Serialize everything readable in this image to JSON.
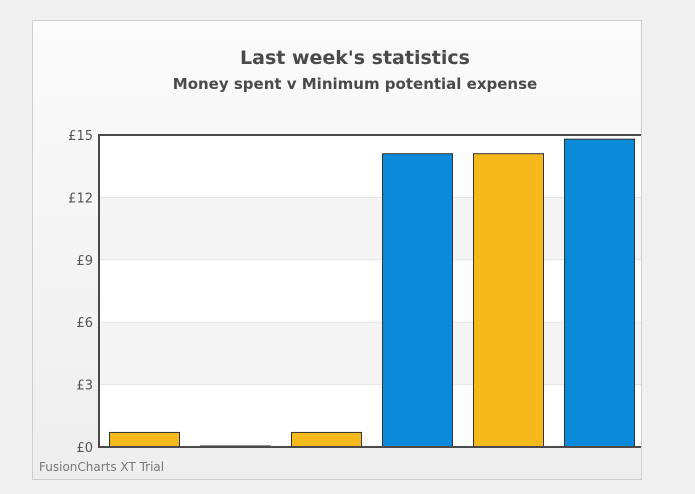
{
  "chart_data": {
    "type": "bar",
    "title": "Last week's statistics",
    "subtitle": "Money spent v Minimum potential expense",
    "ylabel": "",
    "xlabel": "",
    "ylim": [
      0,
      15
    ],
    "y_ticks": [
      "£0",
      "£3",
      "£6",
      "£9",
      "£12",
      "£15"
    ],
    "y_tick_values": [
      0,
      3,
      6,
      9,
      12,
      15
    ],
    "grid": true,
    "categories": [
      "",
      "",
      "",
      "",
      "",
      ""
    ],
    "values": [
      0.7,
      0.05,
      0.7,
      14.1,
      14.1,
      14.8
    ],
    "bar_colors": [
      "#f5b91b",
      "#0a8ad8",
      "#f5b91b",
      "#0a8ad8",
      "#f5b91b",
      "#0a8ad8"
    ]
  },
  "watermark": "FusionCharts XT Trial",
  "colors": {
    "gold": "#f5b91b",
    "blue": "#0a8ad8",
    "plot_background": "#ffffff",
    "band_background": "#f4f4f4",
    "axis": "#4a4a4a"
  }
}
